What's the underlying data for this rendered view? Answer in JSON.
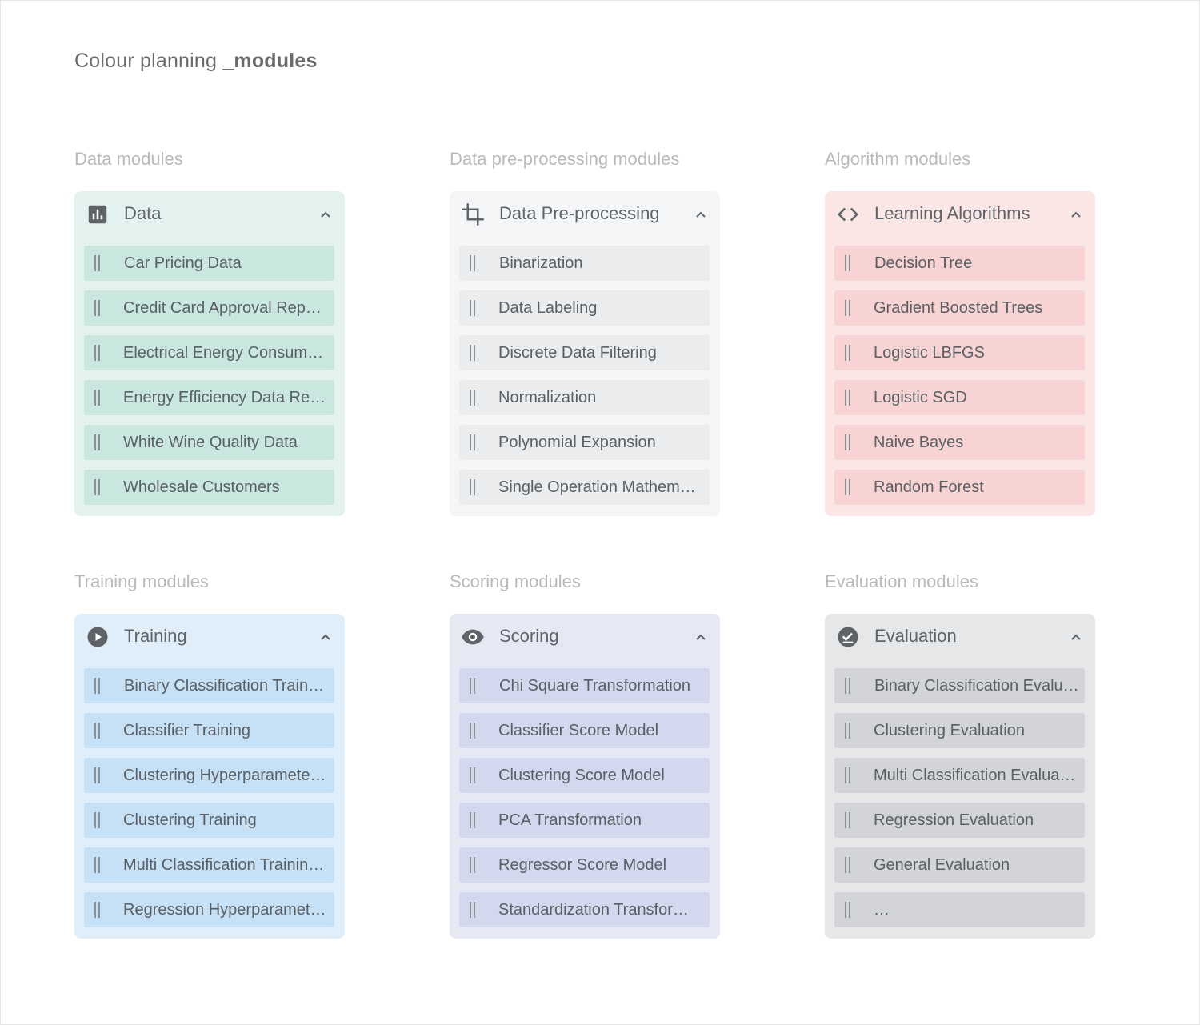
{
  "page": {
    "title_prefix": "Colour planning ",
    "title_bold": "_modules"
  },
  "sections": [
    {
      "label": "Data modules",
      "panel_title": "Data",
      "icon": "bar-chart-icon",
      "colors": {
        "panel": "#e3f2ef",
        "item": "#c9e7df"
      },
      "items": [
        "Car Pricing Data",
        "Credit Card Approval Repo…",
        "Electrical Energy Consum…",
        "Energy Efficiency Data Ret…",
        "White Wine Quality Data",
        "Wholesale Customers"
      ]
    },
    {
      "label": "Data pre-processing modules",
      "panel_title": "Data Pre-processing",
      "icon": "crop-icon",
      "colors": {
        "panel": "#f4f5f6",
        "item": "#ebecee"
      },
      "items": [
        "Binarization",
        "Data Labeling",
        "Discrete Data Filtering",
        "Normalization",
        "Polynomial Expansion",
        "Single Operation Mathema…"
      ]
    },
    {
      "label": "Algorithm modules",
      "panel_title": "Learning Algorithms",
      "icon": "code-icon",
      "colors": {
        "panel": "#fbe6e6",
        "item": "#f8d3d3"
      },
      "items": [
        "Decision Tree",
        "Gradient Boosted Trees",
        "Logistic LBFGS",
        "Logistic SGD",
        "Naive Bayes",
        "Random Forest"
      ]
    },
    {
      "label": "Training modules",
      "panel_title": "Training",
      "icon": "play-circle-icon",
      "colors": {
        "panel": "#e0eefa",
        "item": "#c6e0f6"
      },
      "items": [
        "Binary Classification Train…",
        "Classifier Training",
        "Clustering Hyperparamete…",
        "Clustering Training",
        "Multi Classification Trainin…",
        "Regression Hyperparamet…"
      ]
    },
    {
      "label": "Scoring modules",
      "panel_title": "Scoring",
      "icon": "eye-icon",
      "colors": {
        "panel": "#e6e8f4",
        "item": "#d4d8ee"
      },
      "items": [
        "Chi Square Transformation",
        "Classifier Score Model",
        "Clustering Score Model",
        "PCA Transformation",
        "Regressor Score Model",
        "Standardization Transfor…"
      ]
    },
    {
      "label": "Evaluation modules",
      "panel_title": "Evaluation",
      "icon": "check-circle-icon",
      "colors": {
        "panel": "#e6e7e9",
        "item": "#d2d4d7"
      },
      "items": [
        "Binary Classification Evalu…",
        "Clustering Evaluation",
        "Multi Classification Evalua…",
        "Regression Evaluation",
        "General Evaluation",
        "…"
      ]
    }
  ]
}
